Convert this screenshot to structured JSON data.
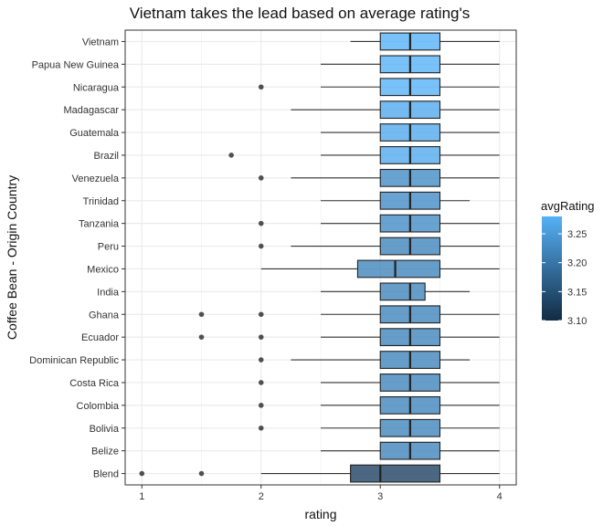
{
  "chart_data": {
    "type": "boxplot",
    "title": "Vietnam takes the lead based on average rating's",
    "xlabel": "rating",
    "ylabel": "Coffee Bean - Origin Country",
    "xlim": [
      0.86,
      4.14
    ],
    "xticks": [
      1,
      2,
      3,
      4
    ],
    "grid": true,
    "legend": {
      "title": "avgRating",
      "position": "right",
      "type": "colorbar",
      "range": [
        3.1,
        3.28
      ],
      "ticks": [
        3.1,
        3.15,
        3.2,
        3.25
      ],
      "colors": {
        "low": "#132b43",
        "high": "#56b1f7"
      }
    },
    "categories": [
      "Vietnam",
      "Papua New Guinea",
      "Nicaragua",
      "Madagascar",
      "Guatemala",
      "Brazil",
      "Venezuela",
      "Trinidad",
      "Tanzania",
      "Peru",
      "Mexico",
      "India",
      "Ghana",
      "Ecuador",
      "Dominican Republic",
      "Costa Rica",
      "Colombia",
      "Bolivia",
      "Belize",
      "Blend"
    ],
    "series": [
      {
        "category": "Vietnam",
        "whisker_low": 2.75,
        "q1": 3.0,
        "median": 3.25,
        "q3": 3.5,
        "whisker_high": 4.0,
        "outliers": [],
        "avgRating": 3.29
      },
      {
        "category": "Papua New Guinea",
        "whisker_low": 2.5,
        "q1": 3.0,
        "median": 3.25,
        "q3": 3.5,
        "whisker_high": 4.0,
        "outliers": [],
        "avgRating": 3.28
      },
      {
        "category": "Nicaragua",
        "whisker_low": 2.5,
        "q1": 3.0,
        "median": 3.25,
        "q3": 3.5,
        "whisker_high": 4.0,
        "outliers": [
          2.0
        ],
        "avgRating": 3.28
      },
      {
        "category": "Madagascar",
        "whisker_low": 2.25,
        "q1": 3.0,
        "median": 3.25,
        "q3": 3.5,
        "whisker_high": 4.0,
        "outliers": [],
        "avgRating": 3.27
      },
      {
        "category": "Guatemala",
        "whisker_low": 2.5,
        "q1": 3.0,
        "median": 3.25,
        "q3": 3.5,
        "whisker_high": 4.0,
        "outliers": [],
        "avgRating": 3.27
      },
      {
        "category": "Brazil",
        "whisker_low": 2.5,
        "q1": 3.0,
        "median": 3.25,
        "q3": 3.5,
        "whisker_high": 4.0,
        "outliers": [
          1.75
        ],
        "avgRating": 3.27
      },
      {
        "category": "Venezuela",
        "whisker_low": 2.25,
        "q1": 3.0,
        "median": 3.25,
        "q3": 3.5,
        "whisker_high": 4.0,
        "outliers": [
          2.0
        ],
        "avgRating": 3.23
      },
      {
        "category": "Trinidad",
        "whisker_low": 2.5,
        "q1": 3.0,
        "median": 3.25,
        "q3": 3.5,
        "whisker_high": 3.75,
        "outliers": [],
        "avgRating": 3.23
      },
      {
        "category": "Tanzania",
        "whisker_low": 2.5,
        "q1": 3.0,
        "median": 3.25,
        "q3": 3.5,
        "whisker_high": 4.0,
        "outliers": [
          2.0
        ],
        "avgRating": 3.23
      },
      {
        "category": "Peru",
        "whisker_low": 2.25,
        "q1": 3.0,
        "median": 3.25,
        "q3": 3.5,
        "whisker_high": 4.0,
        "outliers": [
          2.0
        ],
        "avgRating": 3.22
      },
      {
        "category": "Mexico",
        "whisker_low": 2.0,
        "q1": 2.81,
        "median": 3.125,
        "q3": 3.5,
        "whisker_high": 4.0,
        "outliers": [],
        "avgRating": 3.22
      },
      {
        "category": "India",
        "whisker_low": 2.5,
        "q1": 3.0,
        "median": 3.25,
        "q3": 3.375,
        "whisker_high": 3.75,
        "outliers": [],
        "avgRating": 3.22
      },
      {
        "category": "Ghana",
        "whisker_low": 2.5,
        "q1": 3.0,
        "median": 3.25,
        "q3": 3.5,
        "whisker_high": 4.0,
        "outliers": [
          1.5,
          2.0
        ],
        "avgRating": 3.22
      },
      {
        "category": "Ecuador",
        "whisker_low": 2.5,
        "q1": 3.0,
        "median": 3.25,
        "q3": 3.5,
        "whisker_high": 4.0,
        "outliers": [
          1.5,
          2.0
        ],
        "avgRating": 3.22
      },
      {
        "category": "Dominican Republic",
        "whisker_low": 2.25,
        "q1": 3.0,
        "median": 3.25,
        "q3": 3.5,
        "whisker_high": 3.75,
        "outliers": [
          2.0
        ],
        "avgRating": 3.22
      },
      {
        "category": "Costa Rica",
        "whisker_low": 2.5,
        "q1": 3.0,
        "median": 3.25,
        "q3": 3.5,
        "whisker_high": 4.0,
        "outliers": [
          2.0
        ],
        "avgRating": 3.22
      },
      {
        "category": "Colombia",
        "whisker_low": 2.5,
        "q1": 3.0,
        "median": 3.25,
        "q3": 3.5,
        "whisker_high": 4.0,
        "outliers": [
          2.0
        ],
        "avgRating": 3.22
      },
      {
        "category": "Bolivia",
        "whisker_low": 2.5,
        "q1": 3.0,
        "median": 3.25,
        "q3": 3.5,
        "whisker_high": 4.0,
        "outliers": [
          2.0
        ],
        "avgRating": 3.22
      },
      {
        "category": "Belize",
        "whisker_low": 2.5,
        "q1": 3.0,
        "median": 3.25,
        "q3": 3.5,
        "whisker_high": 4.0,
        "outliers": [],
        "avgRating": 3.22
      },
      {
        "category": "Blend",
        "whisker_low": 2.0,
        "q1": 2.75,
        "median": 3.0,
        "q3": 3.5,
        "whisker_high": 4.0,
        "outliers": [
          1.0,
          1.5
        ],
        "avgRating": 3.13
      }
    ]
  }
}
